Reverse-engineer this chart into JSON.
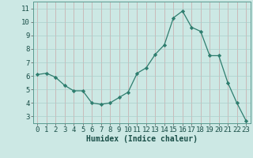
{
  "x": [
    0,
    1,
    2,
    3,
    4,
    5,
    6,
    7,
    8,
    9,
    10,
    11,
    12,
    13,
    14,
    15,
    16,
    17,
    18,
    19,
    20,
    21,
    22,
    23
  ],
  "y": [
    6.1,
    6.2,
    5.9,
    5.3,
    4.9,
    4.9,
    4.0,
    3.9,
    4.0,
    4.4,
    4.8,
    6.2,
    6.6,
    7.6,
    8.3,
    10.3,
    10.8,
    9.6,
    9.3,
    7.5,
    7.5,
    5.5,
    4.0,
    2.7
  ],
  "line_color": "#2e7d6e",
  "marker": "D",
  "marker_size": 2.2,
  "bg_color": "#cce8e4",
  "grid_color": "#aacfcb",
  "grid_red_color": "#d4a0a0",
  "xlabel": "Humidex (Indice chaleur)",
  "xlabel_fontsize": 7,
  "tick_fontsize": 6.5,
  "ylim": [
    2.5,
    11.5
  ],
  "xlim": [
    -0.5,
    23.5
  ],
  "yticks": [
    3,
    4,
    5,
    6,
    7,
    8,
    9,
    10,
    11
  ],
  "xticks": [
    0,
    1,
    2,
    3,
    4,
    5,
    6,
    7,
    8,
    9,
    10,
    11,
    12,
    13,
    14,
    15,
    16,
    17,
    18,
    19,
    20,
    21,
    22,
    23
  ]
}
